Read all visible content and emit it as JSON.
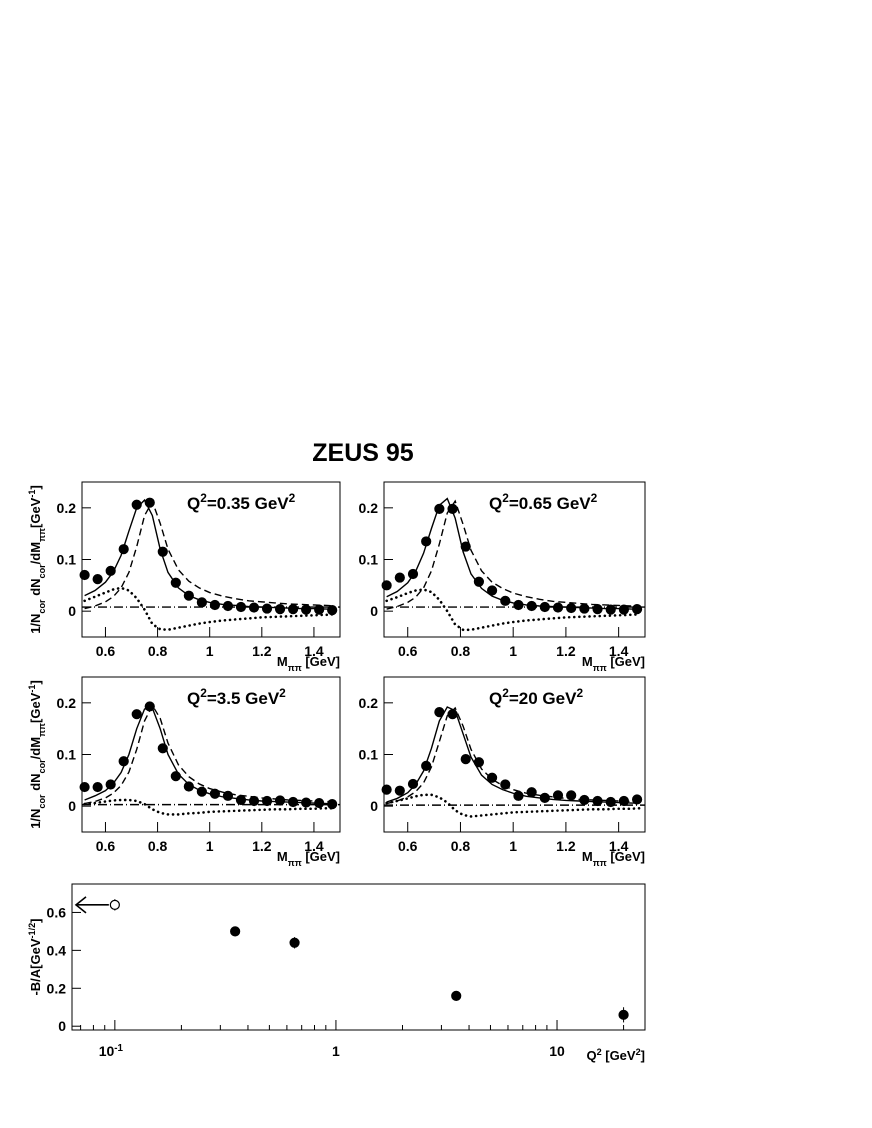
{
  "chart_data": [
    {
      "type": "line",
      "title": "ZEUS 95",
      "label": [
        "Q",
        "2",
        "=0.35 GeV",
        "2"
      ],
      "ylabel": [
        "1/N",
        "cor",
        " dN",
        "cor",
        "/dM",
        "ππ",
        "[GeV",
        "-1",
        "]"
      ],
      "xlabel": [
        "M",
        "ππ",
        " [GeV]"
      ],
      "xlim": [
        0.51,
        1.5
      ],
      "ylim": [
        -0.05,
        0.25
      ],
      "xticks": [
        0.6,
        0.8,
        1,
        1.2,
        1.4
      ],
      "yticks": [
        0,
        0.1,
        0.2
      ],
      "x": [
        0.52,
        0.56,
        0.6,
        0.63,
        0.66,
        0.69,
        0.72,
        0.75,
        0.78,
        0.81,
        0.84,
        0.88,
        0.92,
        0.96,
        1.0,
        1.05,
        1.1,
        1.15,
        1.2,
        1.25,
        1.3,
        1.35,
        1.4,
        1.45,
        1.48
      ],
      "series": [
        {
          "style": "solid",
          "color": "#000000",
          "values": [
            0.03,
            0.04,
            0.056,
            0.076,
            0.108,
            0.155,
            0.2,
            0.215,
            0.185,
            0.12,
            0.075,
            0.045,
            0.03,
            0.022,
            0.017,
            0.013,
            0.011,
            0.009,
            0.008,
            0.007,
            0.006,
            0.005,
            0.005,
            0.004,
            0.004
          ]
        },
        {
          "style": "dashed",
          "color": "#000000",
          "values": [
            0.005,
            0.01,
            0.018,
            0.028,
            0.045,
            0.075,
            0.125,
            0.185,
            0.212,
            0.17,
            0.12,
            0.08,
            0.058,
            0.045,
            0.036,
            0.029,
            0.024,
            0.02,
            0.018,
            0.016,
            0.014,
            0.013,
            0.012,
            0.011,
            0.01
          ]
        },
        {
          "style": "dotted",
          "color": "#000000",
          "values": [
            0.02,
            0.028,
            0.036,
            0.042,
            0.045,
            0.04,
            0.025,
            0.003,
            -0.025,
            -0.035,
            -0.036,
            -0.032,
            -0.028,
            -0.024,
            -0.021,
            -0.018,
            -0.016,
            -0.014,
            -0.012,
            -0.011,
            -0.01,
            -0.009,
            -0.008,
            -0.007,
            -0.006
          ]
        },
        {
          "style": "dashdot",
          "color": "#000000",
          "x": [
            0.51,
            1.5
          ],
          "values": [
            0.008,
            0.008
          ]
        },
        {
          "style": "points",
          "color": "#000000",
          "x": [
            0.52,
            0.57,
            0.62,
            0.67,
            0.72,
            0.77,
            0.82,
            0.87,
            0.92,
            0.97,
            1.02,
            1.07,
            1.12,
            1.17,
            1.22,
            1.27,
            1.32,
            1.37,
            1.42,
            1.47
          ],
          "values": [
            0.07,
            0.062,
            0.078,
            0.12,
            0.206,
            0.21,
            0.115,
            0.055,
            0.03,
            0.017,
            0.012,
            0.01,
            0.008,
            0.007,
            0.005,
            0.004,
            0.004,
            0.003,
            0.003,
            0.002
          ]
        }
      ]
    },
    {
      "type": "line",
      "label": [
        "Q",
        "2",
        "=0.65 GeV",
        "2"
      ],
      "xlabel": [
        "M",
        "ππ",
        " [GeV]"
      ],
      "xlim": [
        0.51,
        1.5
      ],
      "ylim": [
        -0.05,
        0.25
      ],
      "xticks": [
        0.6,
        0.8,
        1,
        1.2,
        1.4
      ],
      "yticks": [
        0,
        0.1,
        0.2
      ],
      "x": [
        0.52,
        0.56,
        0.6,
        0.63,
        0.66,
        0.69,
        0.72,
        0.75,
        0.78,
        0.81,
        0.84,
        0.88,
        0.92,
        0.96,
        1.0,
        1.05,
        1.1,
        1.15,
        1.2,
        1.25,
        1.3,
        1.35,
        1.4,
        1.45,
        1.48
      ],
      "series": [
        {
          "style": "solid",
          "color": "#000000",
          "values": [
            0.028,
            0.038,
            0.055,
            0.077,
            0.112,
            0.16,
            0.205,
            0.218,
            0.18,
            0.115,
            0.072,
            0.044,
            0.029,
            0.021,
            0.016,
            0.012,
            0.01,
            0.009,
            0.008,
            0.007,
            0.006,
            0.005,
            0.005,
            0.004,
            0.004
          ]
        },
        {
          "style": "dashed",
          "color": "#000000",
          "values": [
            0.004,
            0.009,
            0.017,
            0.027,
            0.045,
            0.078,
            0.13,
            0.19,
            0.213,
            0.168,
            0.118,
            0.078,
            0.056,
            0.044,
            0.035,
            0.028,
            0.023,
            0.019,
            0.017,
            0.015,
            0.013,
            0.012,
            0.011,
            0.01,
            0.01
          ]
        },
        {
          "style": "dotted",
          "color": "#000000",
          "values": [
            0.02,
            0.027,
            0.035,
            0.04,
            0.042,
            0.037,
            0.022,
            0.0,
            -0.026,
            -0.036,
            -0.036,
            -0.032,
            -0.028,
            -0.024,
            -0.021,
            -0.018,
            -0.016,
            -0.014,
            -0.012,
            -0.011,
            -0.01,
            -0.009,
            -0.008,
            -0.007,
            -0.006
          ]
        },
        {
          "style": "dashdot",
          "color": "#000000",
          "x": [
            0.51,
            1.5
          ],
          "values": [
            0.008,
            0.008
          ]
        },
        {
          "style": "points",
          "color": "#000000",
          "x": [
            0.52,
            0.57,
            0.62,
            0.67,
            0.72,
            0.77,
            0.82,
            0.87,
            0.92,
            0.97,
            1.02,
            1.07,
            1.12,
            1.17,
            1.22,
            1.27,
            1.32,
            1.37,
            1.42,
            1.47
          ],
          "values": [
            0.05,
            0.065,
            0.072,
            0.135,
            0.198,
            0.198,
            0.125,
            0.057,
            0.04,
            0.02,
            0.012,
            0.01,
            0.008,
            0.007,
            0.006,
            0.005,
            0.004,
            0.003,
            0.003,
            0.004
          ]
        }
      ]
    },
    {
      "type": "line",
      "label": [
        "Q",
        "2",
        "=3.5 GeV",
        "2"
      ],
      "ylabel": [
        "1/N",
        "cor",
        " dN",
        "cor",
        "/dM",
        "ππ",
        "[GeV",
        "-1",
        "]"
      ],
      "xlabel": [
        "M",
        "ππ",
        " [GeV]"
      ],
      "xlim": [
        0.51,
        1.5
      ],
      "ylim": [
        -0.05,
        0.25
      ],
      "xticks": [
        0.6,
        0.8,
        1,
        1.2,
        1.4
      ],
      "yticks": [
        0,
        0.1,
        0.2
      ],
      "x": [
        0.52,
        0.56,
        0.6,
        0.63,
        0.66,
        0.69,
        0.72,
        0.75,
        0.78,
        0.81,
        0.84,
        0.88,
        0.92,
        0.96,
        1.0,
        1.05,
        1.1,
        1.15,
        1.2,
        1.25,
        1.3,
        1.35,
        1.4,
        1.45,
        1.48
      ],
      "series": [
        {
          "style": "solid",
          "color": "#000000",
          "values": [
            0.012,
            0.02,
            0.03,
            0.044,
            0.065,
            0.1,
            0.15,
            0.188,
            0.19,
            0.15,
            0.1,
            0.062,
            0.042,
            0.031,
            0.024,
            0.018,
            0.015,
            0.012,
            0.01,
            0.009,
            0.008,
            0.007,
            0.006,
            0.005,
            0.005
          ]
        },
        {
          "style": "dashed",
          "color": "#000000",
          "values": [
            0.005,
            0.009,
            0.016,
            0.025,
            0.04,
            0.066,
            0.11,
            0.165,
            0.195,
            0.17,
            0.122,
            0.08,
            0.057,
            0.043,
            0.034,
            0.027,
            0.022,
            0.019,
            0.016,
            0.014,
            0.012,
            0.011,
            0.01,
            0.009,
            0.008
          ]
        },
        {
          "style": "dotted",
          "color": "#000000",
          "values": [
            0.004,
            0.006,
            0.009,
            0.011,
            0.012,
            0.012,
            0.01,
            0.004,
            -0.006,
            -0.013,
            -0.016,
            -0.016,
            -0.014,
            -0.013,
            -0.011,
            -0.01,
            -0.009,
            -0.008,
            -0.007,
            -0.006,
            -0.006,
            -0.005,
            -0.005,
            -0.004,
            -0.004
          ]
        },
        {
          "style": "dashdot",
          "color": "#000000",
          "x": [
            0.51,
            1.5
          ],
          "values": [
            0.003,
            0.003
          ]
        },
        {
          "style": "points",
          "color": "#000000",
          "x": [
            0.52,
            0.57,
            0.62,
            0.67,
            0.72,
            0.77,
            0.82,
            0.87,
            0.92,
            0.97,
            1.02,
            1.07,
            1.12,
            1.17,
            1.22,
            1.27,
            1.32,
            1.37,
            1.42,
            1.47
          ],
          "values": [
            0.037,
            0.037,
            0.042,
            0.087,
            0.178,
            0.193,
            0.112,
            0.058,
            0.038,
            0.028,
            0.024,
            0.02,
            0.012,
            0.01,
            0.01,
            0.011,
            0.008,
            0.007,
            0.006,
            0.004
          ]
        }
      ]
    },
    {
      "type": "line",
      "label": [
        "Q",
        "2",
        "=20 GeV",
        "2"
      ],
      "xlabel": [
        "M",
        "ππ",
        " [GeV]"
      ],
      "xlim": [
        0.51,
        1.5
      ],
      "ylim": [
        -0.05,
        0.25
      ],
      "xticks": [
        0.6,
        0.8,
        1,
        1.2,
        1.4
      ],
      "yticks": [
        0,
        0.1,
        0.2
      ],
      "x": [
        0.52,
        0.56,
        0.6,
        0.63,
        0.66,
        0.69,
        0.72,
        0.75,
        0.78,
        0.81,
        0.84,
        0.88,
        0.92,
        0.96,
        1.0,
        1.05,
        1.1,
        1.15,
        1.2,
        1.25,
        1.3,
        1.35,
        1.4,
        1.45,
        1.48
      ],
      "series": [
        {
          "style": "solid",
          "color": "#000000",
          "values": [
            0.008,
            0.015,
            0.026,
            0.042,
            0.068,
            0.112,
            0.165,
            0.192,
            0.185,
            0.14,
            0.095,
            0.06,
            0.042,
            0.032,
            0.025,
            0.019,
            0.016,
            0.013,
            0.011,
            0.01,
            0.009,
            0.008,
            0.007,
            0.006,
            0.006
          ]
        },
        {
          "style": "dashed",
          "color": "#000000",
          "values": [
            0.005,
            0.01,
            0.018,
            0.028,
            0.045,
            0.076,
            0.125,
            0.175,
            0.19,
            0.155,
            0.11,
            0.072,
            0.052,
            0.04,
            0.032,
            0.025,
            0.021,
            0.018,
            0.015,
            0.013,
            0.012,
            0.011,
            0.01,
            0.009,
            0.009
          ]
        },
        {
          "style": "dotted",
          "color": "#000000",
          "values": [
            0.006,
            0.01,
            0.015,
            0.019,
            0.022,
            0.022,
            0.017,
            0.007,
            -0.008,
            -0.017,
            -0.02,
            -0.018,
            -0.016,
            -0.014,
            -0.012,
            -0.011,
            -0.01,
            -0.009,
            -0.008,
            -0.007,
            -0.006,
            -0.006,
            -0.005,
            -0.005,
            -0.004
          ]
        },
        {
          "style": "dashdot",
          "color": "#000000",
          "x": [
            0.51,
            1.5
          ],
          "values": [
            0.002,
            0.002
          ]
        },
        {
          "style": "points",
          "color": "#000000",
          "x": [
            0.52,
            0.57,
            0.62,
            0.67,
            0.72,
            0.77,
            0.82,
            0.87,
            0.92,
            0.97,
            1.02,
            1.07,
            1.12,
            1.17,
            1.22,
            1.27,
            1.32,
            1.37,
            1.42,
            1.47
          ],
          "values": [
            0.032,
            0.03,
            0.043,
            0.078,
            0.182,
            0.178,
            0.091,
            0.085,
            0.055,
            0.042,
            0.02,
            0.027,
            0.016,
            0.021,
            0.021,
            0.012,
            0.01,
            0.008,
            0.01,
            0.013
          ]
        }
      ]
    },
    {
      "type": "scatter",
      "log_x": true,
      "ylabel": [
        "-B/A[GeV",
        "-1/2",
        "]"
      ],
      "xlabel": [
        "Q",
        "2",
        " [GeV",
        "2",
        "]"
      ],
      "xlim": [
        0.064,
        25
      ],
      "ylim": [
        -0.02,
        0.75
      ],
      "xticks": [
        {
          "value": 0.1,
          "label": "10",
          "exponent": "-1"
        },
        1,
        10
      ],
      "minor_xticks": [
        0.07,
        0.08,
        0.09,
        0.2,
        0.3,
        0.4,
        0.5,
        0.6,
        0.7,
        0.8,
        0.9,
        2,
        3,
        4,
        5,
        6,
        7,
        8,
        9,
        20
      ],
      "yticks": [
        0,
        0.2,
        0.4,
        0.6
      ],
      "series": [
        {
          "style": "open",
          "color": "#000000",
          "x": [
            0.1
          ],
          "values": [
            0.64
          ],
          "errors": [
            0.03
          ]
        },
        {
          "style": "points",
          "color": "#000000",
          "x": [
            0.35,
            0.65,
            3.5,
            20
          ],
          "values": [
            0.5,
            0.44,
            0.16,
            0.06
          ],
          "errors": [
            0.02,
            0.03,
            0.01,
            0.04
          ]
        }
      ]
    }
  ]
}
